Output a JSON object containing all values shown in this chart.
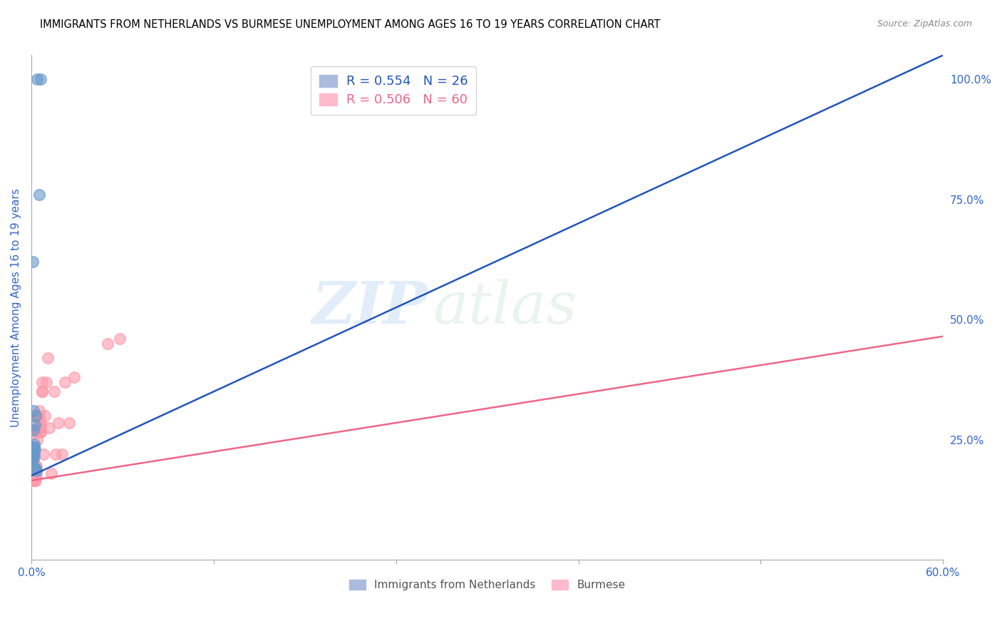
{
  "title": "IMMIGRANTS FROM NETHERLANDS VS BURMESE UNEMPLOYMENT AMONG AGES 16 TO 19 YEARS CORRELATION CHART",
  "source": "Source: ZipAtlas.com",
  "ylabel": "Unemployment Among Ages 16 to 19 years",
  "right_yticklabels": [
    "",
    "25.0%",
    "50.0%",
    "75.0%",
    "100.0%"
  ],
  "legend1_label": "R = 0.554   N = 26",
  "legend2_label": "R = 0.506   N = 60",
  "watermark_zip": "ZIP",
  "watermark_atlas": "atlas",
  "blue_color": "#6699CC",
  "pink_color": "#FF99AA",
  "blue_line_color": "#2255BB",
  "pink_line_color": "#EE6688",
  "text_color": "#3366CC",
  "axis_color": "#AAAAAA",
  "blue_scatter_x": [
    0.0005,
    0.0005,
    0.0005,
    0.0008,
    0.0008,
    0.001,
    0.001,
    0.001,
    0.0012,
    0.0012,
    0.0012,
    0.0015,
    0.0015,
    0.0018,
    0.0018,
    0.002,
    0.002,
    0.002,
    0.0025,
    0.0025,
    0.003,
    0.003,
    0.0035,
    0.004,
    0.005,
    0.006
  ],
  "blue_scatter_y": [
    0.215,
    0.225,
    0.235,
    0.21,
    0.22,
    0.215,
    0.225,
    0.235,
    0.21,
    0.23,
    0.62,
    0.27,
    0.31,
    0.215,
    0.225,
    0.235,
    0.24,
    0.19,
    0.23,
    0.28,
    0.19,
    0.3,
    0.185,
    1.0,
    0.76,
    1.0
  ],
  "pink_scatter_x": [
    0.0003,
    0.0005,
    0.0008,
    0.001,
    0.001,
    0.0012,
    0.0012,
    0.0015,
    0.0015,
    0.0018,
    0.0018,
    0.002,
    0.002,
    0.002,
    0.002,
    0.0022,
    0.0022,
    0.0025,
    0.0025,
    0.003,
    0.003,
    0.003,
    0.0032,
    0.0032,
    0.0035,
    0.0035,
    0.004,
    0.004,
    0.004,
    0.0042,
    0.0042,
    0.0045,
    0.0045,
    0.005,
    0.005,
    0.005,
    0.005,
    0.0055,
    0.006,
    0.006,
    0.006,
    0.006,
    0.007,
    0.007,
    0.007,
    0.008,
    0.009,
    0.01,
    0.011,
    0.012,
    0.013,
    0.015,
    0.016,
    0.018,
    0.02,
    0.022,
    0.025,
    0.028,
    0.05,
    0.058
  ],
  "pink_scatter_y": [
    0.2,
    0.18,
    0.195,
    0.2,
    0.175,
    0.185,
    0.195,
    0.185,
    0.165,
    0.2,
    0.165,
    0.185,
    0.175,
    0.195,
    0.22,
    0.185,
    0.165,
    0.18,
    0.195,
    0.195,
    0.175,
    0.165,
    0.195,
    0.175,
    0.185,
    0.265,
    0.27,
    0.295,
    0.25,
    0.265,
    0.3,
    0.295,
    0.3,
    0.275,
    0.295,
    0.31,
    0.275,
    0.285,
    0.265,
    0.265,
    0.275,
    0.285,
    0.35,
    0.37,
    0.35,
    0.22,
    0.3,
    0.37,
    0.42,
    0.275,
    0.18,
    0.35,
    0.22,
    0.285,
    0.22,
    0.37,
    0.285,
    0.38,
    0.45,
    0.46
  ],
  "blue_trend_x": [
    0.0,
    0.6
  ],
  "blue_trend_y": [
    0.175,
    1.05
  ],
  "pink_trend_x": [
    0.0,
    0.6
  ],
  "pink_trend_y": [
    0.165,
    0.465
  ],
  "xlim": [
    0.0,
    0.6
  ],
  "ylim": [
    0.0,
    1.05
  ],
  "xticks": [
    0.0,
    0.12,
    0.24,
    0.36,
    0.48,
    0.6
  ],
  "xticklabels": [
    "0.0%",
    "",
    "",
    "",
    "",
    "60.0%"
  ],
  "right_yticks": [
    0.0,
    0.25,
    0.5,
    0.75,
    1.0
  ]
}
